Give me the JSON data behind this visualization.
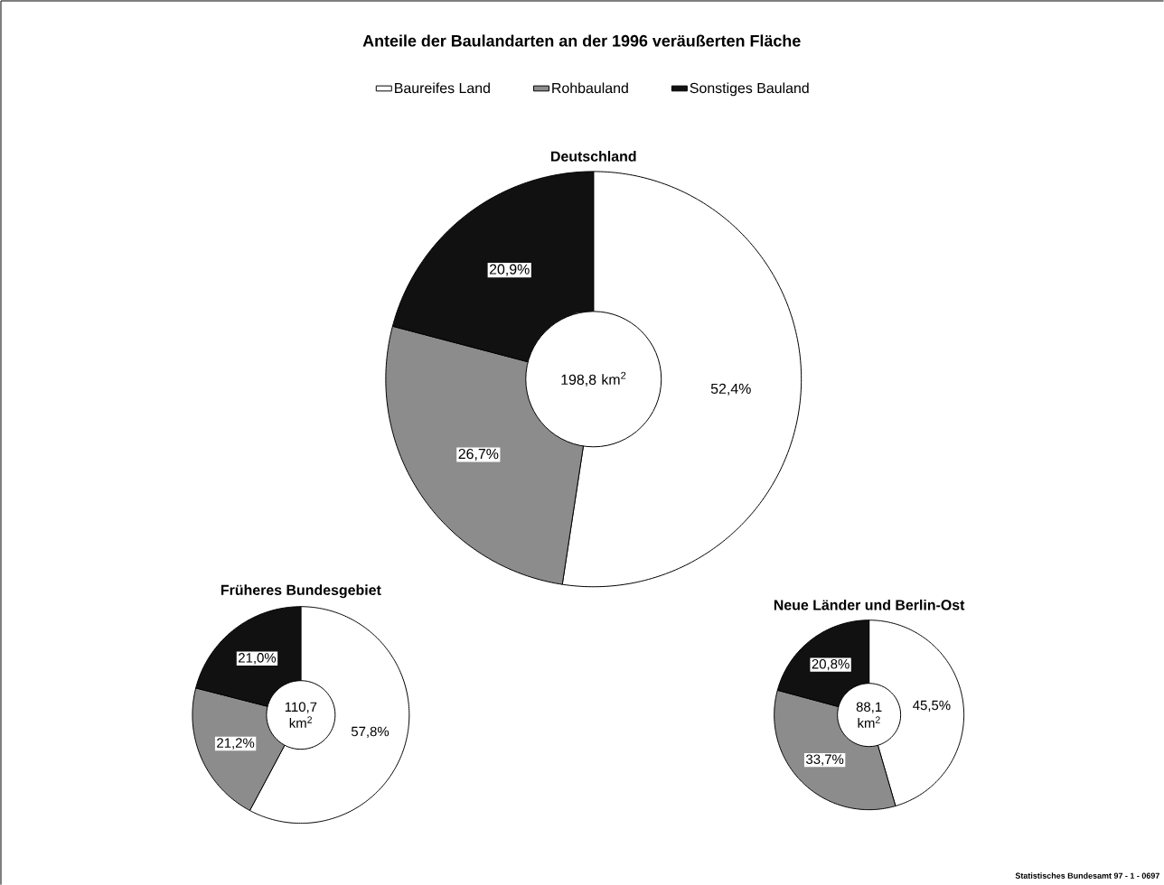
{
  "chart_data": [
    {
      "type": "donut",
      "title": "Anteile der Baulandarten an der 1996 veräußerten Fläche",
      "subtitle": "Deutschland",
      "categories": [
        "Baureifes Land",
        "Rohbauland",
        "Sonstiges Bauland"
      ],
      "values": [
        52.4,
        26.7,
        20.9
      ],
      "value_labels": [
        "52,4%",
        "26,7%",
        "20,9%"
      ],
      "colors": [
        "#ffffff",
        "#8c8c8c",
        "#111111"
      ],
      "legend": "top",
      "annotations": [
        "198,8 km$^{2}$"
      ]
    },
    {
      "type": "donut",
      "title": "Früheres Bundesgebiet",
      "categories": [
        null,
        null,
        null
      ],
      "values": [
        57.8,
        21.2,
        21.0
      ],
      "value_labels": [
        "57,8%",
        "21,2%",
        "21,0%"
      ],
      "colors": [
        "#ffffff",
        "#8c8c8c",
        "#111111"
      ],
      "annotations": [
        "110,7 km$^{2}$"
      ]
    },
    {
      "type": "donut",
      "title": "Neue Länder und Berlin-Ost",
      "categories": [
        null,
        null,
        null
      ],
      "values": [
        45.5,
        33.7,
        20.8
      ],
      "value_labels": [
        "45,5%",
        "33,7%",
        "20,8%"
      ],
      "colors": [
        "#ffffff",
        "#8c8c8c",
        "#111111"
      ],
      "annotations": [
        "88,1 km$^{2}$",
        "Statistisches Bundesamt 97 - 1 - 0697"
      ]
    }
  ]
}
